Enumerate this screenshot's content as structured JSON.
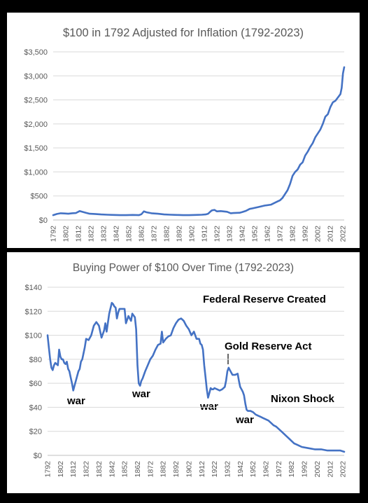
{
  "chart_data": [
    {
      "type": "line",
      "title": "$100 in 1792 Adjusted for Inflation (1792-2023)",
      "xlabel": "",
      "ylabel": "",
      "ylim": [
        0,
        3500
      ],
      "yticks": [
        "$0",
        "$500",
        "$1,000",
        "$1,500",
        "$2,000",
        "$2,500",
        "$3,000",
        "$3,500"
      ],
      "xticks": [
        "1792",
        "1802",
        "1812",
        "1822",
        "1832",
        "1842",
        "1852",
        "1862",
        "1872",
        "1882",
        "1892",
        "1902",
        "1912",
        "1922",
        "1932",
        "1942",
        "1952",
        "1962",
        "1972",
        "1982",
        "1992",
        "2002",
        "2012",
        "2022"
      ],
      "grid": "horizontal",
      "legend": "none",
      "color": "#4472C4",
      "series": [
        {
          "x": [
            1792,
            1795,
            1798,
            1801,
            1804,
            1807,
            1810,
            1813,
            1815,
            1818,
            1821,
            1825,
            1830,
            1835,
            1840,
            1845,
            1850,
            1855,
            1860,
            1862,
            1864,
            1866,
            1870,
            1875,
            1880,
            1885,
            1890,
            1895,
            1900,
            1905,
            1910,
            1913,
            1915,
            1917,
            1918,
            1920,
            1922,
            1925,
            1930,
            1933,
            1935,
            1940,
            1942,
            1945,
            1948,
            1950,
            1955,
            1960,
            1965,
            1970,
            1972,
            1974,
            1976,
            1978,
            1980,
            1982,
            1984,
            1986,
            1988,
            1990,
            1992,
            1994,
            1996,
            1998,
            2000,
            2002,
            2004,
            2006,
            2008,
            2010,
            2012,
            2014,
            2016,
            2018,
            2020,
            2021,
            2022,
            2023
          ],
          "y": [
            100,
            125,
            140,
            135,
            130,
            140,
            145,
            185,
            170,
            150,
            130,
            125,
            115,
            110,
            105,
            100,
            100,
            105,
            100,
            120,
            180,
            160,
            140,
            130,
            115,
            110,
            105,
            100,
            100,
            105,
            110,
            115,
            130,
            180,
            200,
            210,
            180,
            185,
            170,
            140,
            145,
            150,
            165,
            190,
            230,
            240,
            270,
            300,
            320,
            385,
            410,
            460,
            540,
            620,
            750,
            920,
            1000,
            1050,
            1150,
            1200,
            1340,
            1420,
            1520,
            1600,
            1720,
            1800,
            1880,
            2000,
            2150,
            2200,
            2350,
            2450,
            2480,
            2550,
            2620,
            2750,
            3050,
            3180
          ]
        }
      ]
    },
    {
      "type": "line",
      "title": "Buying Power of $100 Over Time (1792-2023)",
      "xlabel": "",
      "ylabel": "",
      "ylim": [
        0,
        140
      ],
      "yticks": [
        "$0",
        "$20",
        "$40",
        "$60",
        "$80",
        "$100",
        "$120",
        "$140"
      ],
      "xticks": [
        "1792",
        "1802",
        "1812",
        "1822",
        "1832",
        "1842",
        "1852",
        "1862",
        "1872",
        "1882",
        "1892",
        "1902",
        "1912",
        "1922",
        "1932",
        "1942",
        "1952",
        "1962",
        "1972",
        "1982",
        "1992",
        "2002",
        "2012",
        "2022"
      ],
      "grid": "horizontal",
      "legend": "none",
      "color": "#4472C4",
      "series": [
        {
          "x": [
            1792,
            1793,
            1794,
            1795,
            1796,
            1797,
            1798,
            1799,
            1800,
            1801,
            1802,
            1803,
            1804,
            1805,
            1806,
            1807,
            1808,
            1809,
            1810,
            1811,
            1812,
            1813,
            1814,
            1815,
            1816,
            1817,
            1818,
            1819,
            1820,
            1821,
            1822,
            1824,
            1826,
            1828,
            1830,
            1832,
            1834,
            1836,
            1837,
            1838,
            1840,
            1842,
            1843,
            1844,
            1845,
            1846,
            1847,
            1848,
            1850,
            1852,
            1853,
            1855,
            1857,
            1858,
            1860,
            1861,
            1862,
            1863,
            1864,
            1865,
            1866,
            1868,
            1870,
            1872,
            1874,
            1876,
            1878,
            1880,
            1881,
            1882,
            1884,
            1886,
            1888,
            1890,
            1892,
            1894,
            1896,
            1898,
            1900,
            1902,
            1904,
            1906,
            1908,
            1910,
            1911,
            1912,
            1913,
            1914,
            1915,
            1916,
            1917,
            1918,
            1919,
            1920,
            1921,
            1922,
            1924,
            1926,
            1928,
            1930,
            1931,
            1932,
            1933,
            1934,
            1936,
            1938,
            1940,
            1941,
            1942,
            1943,
            1944,
            1945,
            1946,
            1947,
            1948,
            1950,
            1952,
            1954,
            1956,
            1958,
            1960,
            1962,
            1964,
            1966,
            1968,
            1970,
            1972,
            1974,
            1976,
            1978,
            1980,
            1982,
            1984,
            1986,
            1988,
            1990,
            1995,
            2000,
            2005,
            2010,
            2015,
            2020,
            2023
          ],
          "y": [
            100,
            90,
            80,
            73,
            71,
            75,
            77,
            76,
            75,
            88,
            82,
            80,
            80,
            77,
            76,
            78,
            72,
            70,
            65,
            60,
            54,
            58,
            62,
            66,
            70,
            72,
            78,
            80,
            85,
            90,
            97,
            96,
            100,
            108,
            111,
            108,
            98,
            104,
            110,
            103,
            118,
            127,
            126,
            124,
            123,
            114,
            119,
            122,
            122,
            122,
            110,
            116,
            112,
            118,
            115,
            105,
            75,
            60,
            58,
            62,
            64,
            70,
            75,
            80,
            83,
            88,
            92,
            93,
            103,
            94,
            97,
            99,
            100,
            106,
            110,
            113,
            114,
            112,
            108,
            105,
            100,
            103,
            97,
            97,
            93,
            92,
            88,
            75,
            65,
            55,
            48,
            52,
            56,
            55,
            55,
            56,
            55,
            54,
            55,
            57,
            62,
            70,
            73,
            71,
            67,
            67,
            68,
            62,
            57,
            55,
            53,
            50,
            43,
            38,
            37,
            37,
            36,
            34,
            33,
            32,
            31,
            30,
            29,
            27,
            25,
            24,
            22,
            20,
            18,
            16,
            14,
            12,
            10,
            9,
            8,
            7,
            6,
            5,
            5,
            4,
            4,
            4,
            3
          ]
        }
      ],
      "annotations": [
        {
          "text": "Federal Reserve Created",
          "year": 1913
        },
        {
          "text": "Gold Reserve Act",
          "year": 1934
        },
        {
          "text": "Nixon Shock",
          "year": 1971
        },
        {
          "text": "war",
          "year": 1812
        },
        {
          "text": "war",
          "year": 1861
        },
        {
          "text": "war",
          "year": 1917
        },
        {
          "text": "war",
          "year": 1943
        }
      ]
    }
  ]
}
